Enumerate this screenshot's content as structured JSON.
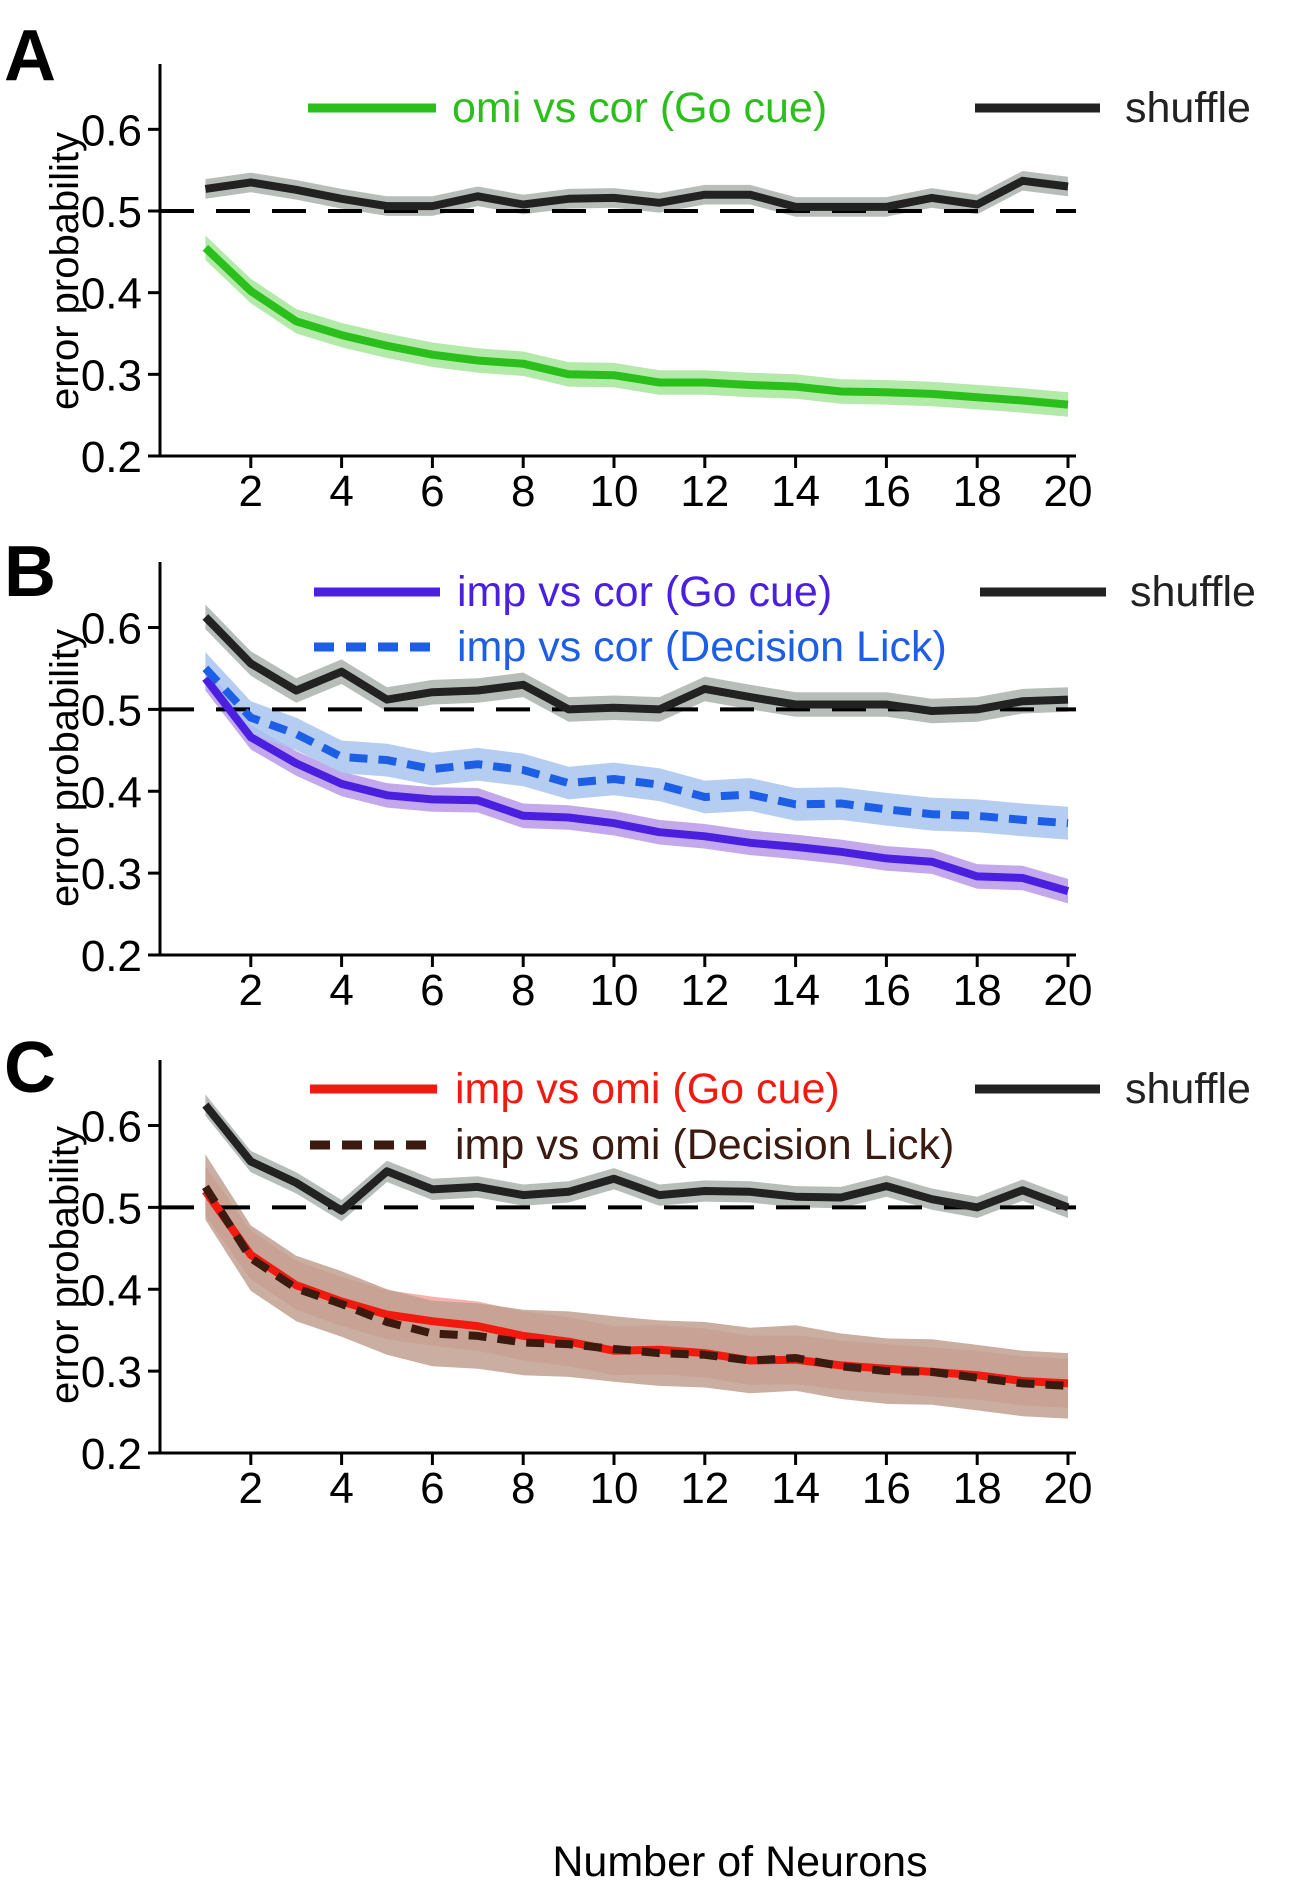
{
  "figure": {
    "xlabel": "Number of Neurons"
  },
  "colors": {
    "axis": "#000000",
    "shuffle": "#222222",
    "shuffle_band": "#b3bab6",
    "green": "#2bbf1c",
    "green_band": "#a6e69a",
    "purple": "#4b1fe0",
    "purple_band": "#b99ae8",
    "blue": "#1d5ee6",
    "blue_band": "#a9c4f0",
    "red": "#f21a0e",
    "red_band": "#f4a6a0",
    "brown": "#3b1a10",
    "brown_band": "#c0a090",
    "overlap_band": "#c46a5a"
  },
  "chart_data": [
    {
      "panel": "A",
      "type": "line",
      "ylabel": "error probability",
      "xlim": [
        0,
        20
      ],
      "ylim": [
        0.2,
        0.68
      ],
      "yticks": [
        "0.2",
        "0.3",
        "0.4",
        "0.5",
        "0.6"
      ],
      "xticks": [
        "2",
        "4",
        "6",
        "8",
        "10",
        "12",
        "14",
        "16",
        "18",
        "20"
      ],
      "chance_level": 0.5,
      "series": [
        {
          "name": "shuffle",
          "style": "solid",
          "x": [
            1,
            2,
            3,
            4,
            5,
            6,
            7,
            8,
            9,
            10,
            11,
            12,
            13,
            14,
            15,
            16,
            17,
            18,
            19,
            20
          ],
          "values": [
            0.527,
            0.535,
            0.526,
            0.515,
            0.506,
            0.506,
            0.518,
            0.508,
            0.515,
            0.516,
            0.51,
            0.52,
            0.52,
            0.505,
            0.505,
            0.505,
            0.516,
            0.508,
            0.537,
            0.53
          ],
          "band": 0.012
        },
        {
          "name": "omi vs cor (Go cue)",
          "style": "solid",
          "x": [
            1,
            2,
            3,
            4,
            5,
            6,
            7,
            8,
            9,
            10,
            11,
            12,
            13,
            14,
            15,
            16,
            17,
            18,
            19,
            20
          ],
          "values": [
            0.455,
            0.402,
            0.365,
            0.348,
            0.335,
            0.324,
            0.317,
            0.313,
            0.3,
            0.299,
            0.29,
            0.29,
            0.287,
            0.285,
            0.279,
            0.278,
            0.276,
            0.272,
            0.268,
            0.263
          ],
          "band": 0.015
        }
      ]
    },
    {
      "panel": "B",
      "type": "line",
      "ylabel": "error probability",
      "xlim": [
        0,
        20
      ],
      "ylim": [
        0.2,
        0.68
      ],
      "yticks": [
        "0.2",
        "0.3",
        "0.4",
        "0.5",
        "0.6"
      ],
      "xticks": [
        "2",
        "4",
        "6",
        "8",
        "10",
        "12",
        "14",
        "16",
        "18",
        "20"
      ],
      "chance_level": 0.5,
      "series": [
        {
          "name": "shuffle",
          "style": "solid",
          "x": [
            1,
            2,
            3,
            4,
            5,
            6,
            7,
            8,
            9,
            10,
            11,
            12,
            13,
            14,
            15,
            16,
            17,
            18,
            19,
            20
          ],
          "values": [
            0.613,
            0.556,
            0.523,
            0.546,
            0.512,
            0.521,
            0.523,
            0.53,
            0.5,
            0.502,
            0.5,
            0.525,
            0.515,
            0.506,
            0.506,
            0.506,
            0.498,
            0.5,
            0.51,
            0.512
          ],
          "band": 0.015
        },
        {
          "name": "imp vs cor (Go cue)",
          "style": "solid",
          "x": [
            1,
            2,
            3,
            4,
            5,
            6,
            7,
            8,
            9,
            10,
            11,
            12,
            13,
            14,
            15,
            16,
            17,
            18,
            19,
            20
          ],
          "values": [
            0.538,
            0.466,
            0.434,
            0.409,
            0.395,
            0.39,
            0.389,
            0.37,
            0.368,
            0.361,
            0.35,
            0.345,
            0.337,
            0.332,
            0.326,
            0.318,
            0.314,
            0.296,
            0.294,
            0.278
          ],
          "band": 0.015
        },
        {
          "name": "imp vs cor (Decision Lick)",
          "style": "dashed",
          "x": [
            1,
            2,
            3,
            4,
            5,
            6,
            7,
            8,
            9,
            10,
            11,
            12,
            13,
            14,
            15,
            16,
            17,
            18,
            19,
            20
          ],
          "values": [
            0.55,
            0.49,
            0.47,
            0.442,
            0.438,
            0.427,
            0.433,
            0.426,
            0.41,
            0.415,
            0.408,
            0.393,
            0.396,
            0.384,
            0.385,
            0.378,
            0.372,
            0.37,
            0.365,
            0.361
          ],
          "band": 0.02
        }
      ]
    },
    {
      "panel": "C",
      "type": "line",
      "ylabel": "error probability",
      "xlim": [
        0,
        20
      ],
      "ylim": [
        0.2,
        0.68
      ],
      "yticks": [
        "0.2",
        "0.3",
        "0.4",
        "0.5",
        "0.6"
      ],
      "xticks": [
        "2",
        "4",
        "6",
        "8",
        "10",
        "12",
        "14",
        "16",
        "18",
        "20"
      ],
      "chance_level": 0.5,
      "series": [
        {
          "name": "shuffle",
          "style": "solid",
          "x": [
            1,
            2,
            3,
            4,
            5,
            6,
            7,
            8,
            9,
            10,
            11,
            12,
            13,
            14,
            15,
            16,
            17,
            18,
            19,
            20
          ],
          "values": [
            0.625,
            0.556,
            0.53,
            0.496,
            0.544,
            0.522,
            0.525,
            0.515,
            0.519,
            0.535,
            0.515,
            0.52,
            0.519,
            0.513,
            0.512,
            0.526,
            0.51,
            0.5,
            0.521,
            0.5
          ],
          "band": 0.013
        },
        {
          "name": "imp vs omi (Go cue)",
          "style": "solid",
          "x": [
            1,
            2,
            3,
            4,
            5,
            6,
            7,
            8,
            9,
            10,
            11,
            12,
            13,
            14,
            15,
            16,
            17,
            18,
            19,
            20
          ],
          "values": [
            0.52,
            0.442,
            0.405,
            0.385,
            0.369,
            0.361,
            0.355,
            0.343,
            0.336,
            0.325,
            0.326,
            0.322,
            0.313,
            0.314,
            0.307,
            0.303,
            0.299,
            0.295,
            0.288,
            0.285
          ],
          "band": 0.03
        },
        {
          "name": "imp vs omi (Decision Lick)",
          "style": "dashed",
          "x": [
            1,
            2,
            3,
            4,
            5,
            6,
            7,
            8,
            9,
            10,
            11,
            12,
            13,
            14,
            15,
            16,
            17,
            18,
            19,
            20
          ],
          "values": [
            0.525,
            0.438,
            0.401,
            0.382,
            0.36,
            0.346,
            0.343,
            0.335,
            0.333,
            0.327,
            0.322,
            0.32,
            0.313,
            0.316,
            0.306,
            0.3,
            0.299,
            0.292,
            0.285,
            0.282
          ],
          "band": 0.04
        }
      ]
    }
  ]
}
